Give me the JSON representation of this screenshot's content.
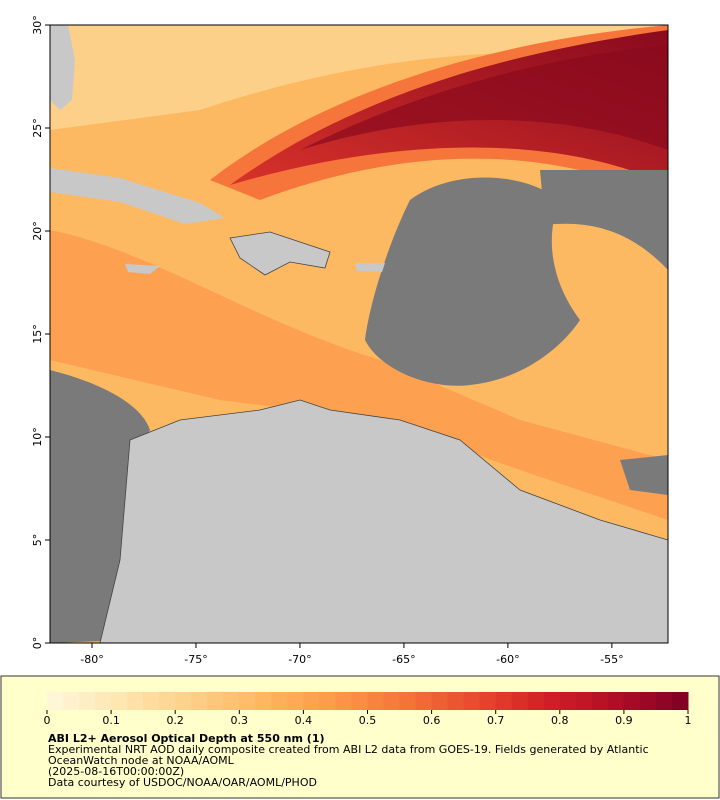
{
  "map": {
    "xlim": [
      -82.02,
      -52.3
    ],
    "ylim": [
      0,
      30
    ],
    "xticks": [
      {
        "value": -80,
        "label": "-80°"
      },
      {
        "value": -75,
        "label": "-75°"
      },
      {
        "value": -70,
        "label": "-70°"
      },
      {
        "value": -65,
        "label": "-65°"
      },
      {
        "value": -60,
        "label": "-60°"
      },
      {
        "value": -55,
        "label": "-55°"
      }
    ],
    "yticks": [
      {
        "value": 0,
        "label": "0°"
      },
      {
        "value": 5,
        "label": "5°"
      },
      {
        "value": 10,
        "label": "10°"
      },
      {
        "value": 15,
        "label": "15°"
      },
      {
        "value": 20,
        "label": "20°"
      },
      {
        "value": 25,
        "label": "25°"
      },
      {
        "value": 30,
        "label": "30°"
      }
    ]
  },
  "colorbar": {
    "lim": [
      0,
      1
    ],
    "ticks": [
      0,
      0.1,
      0.2,
      0.3,
      0.4,
      0.5,
      0.6,
      0.7,
      0.8,
      0.9,
      1
    ],
    "colors": [
      "#fff7dc",
      "#fee7b0",
      "#fdd08a",
      "#fdb862",
      "#fc9a4c",
      "#f6753a",
      "#e94a2e",
      "#d22026",
      "#b00d26",
      "#7f0024"
    ]
  },
  "caption": {
    "title": "ABI L2+ Aerosol Optical Depth at 550 nm (1)",
    "lines": [
      "Experimental NRT AOD daily composite created from ABI L2 data from GOES-19. Fields generated by Atlantic",
      "OceanWatch node at NOAA/AOML",
      "(2025-08-16T00:00:00Z)",
      "Data courtesy of USDOC/NOAA/OAR/AOML/PHOD"
    ]
  }
}
